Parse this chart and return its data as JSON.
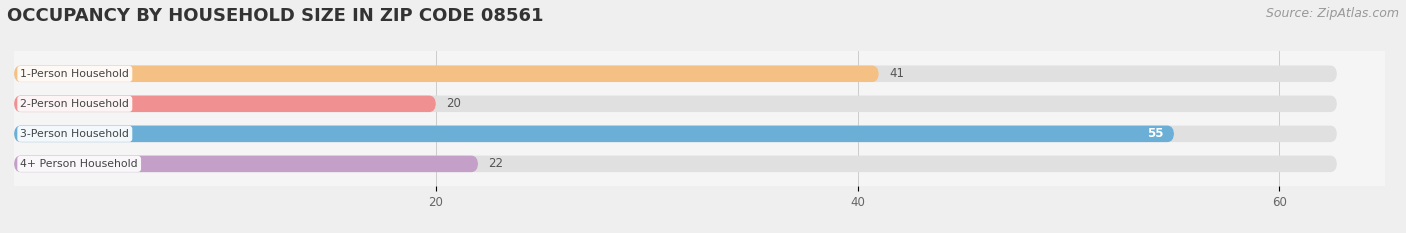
{
  "title": "OCCUPANCY BY HOUSEHOLD SIZE IN ZIP CODE 08561",
  "source": "Source: ZipAtlas.com",
  "categories": [
    "1-Person Household",
    "2-Person Household",
    "3-Person Household",
    "4+ Person Household"
  ],
  "values": [
    41,
    20,
    55,
    22
  ],
  "bar_colors": [
    "#f5c083",
    "#f09090",
    "#6baed6",
    "#c4a0c8"
  ],
  "bar_label_color": [
    "#555555",
    "#555555",
    "#ffffff",
    "#555555"
  ],
  "xlim": [
    0,
    65
  ],
  "xticks": [
    20,
    40,
    60
  ],
  "bg_color": "#efefef",
  "plot_bg_color": "#f5f5f5",
  "track_color": "#e0e0e0",
  "title_fontsize": 13,
  "source_fontsize": 9,
  "bar_height": 0.55,
  "figsize": [
    14.06,
    2.33
  ],
  "dpi": 100
}
